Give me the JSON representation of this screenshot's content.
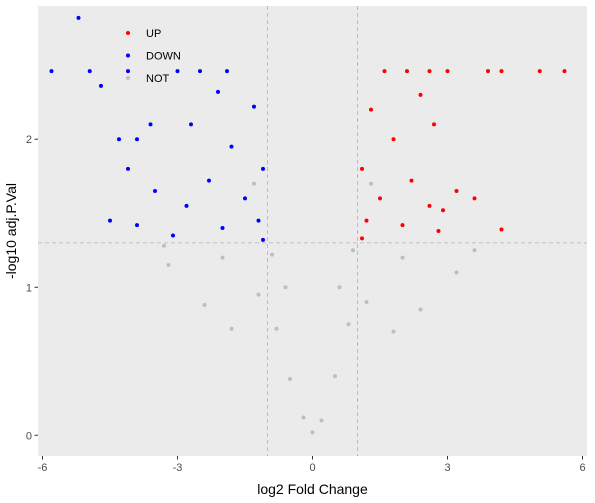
{
  "chart_data": {
    "type": "scatter",
    "title": "",
    "xlabel": "log2 Fold Change",
    "ylabel": "-log10 adj.P.Val",
    "xlim": [
      -6.1,
      6.1
    ],
    "ylim": [
      -0.14,
      2.9
    ],
    "x_ticks": [
      -6,
      -3,
      0,
      3,
      6
    ],
    "y_ticks": [
      0,
      1,
      2
    ],
    "thresholds": {
      "x": [
        -1,
        1
      ],
      "y": 1.3
    },
    "grid": false,
    "panel_background": "#ebebeb",
    "legend": {
      "placement": "top-left",
      "entries": [
        {
          "label": "UP",
          "color": "#ff0000"
        },
        {
          "label": "DOWN",
          "color": "#0000ff"
        },
        {
          "label": "NOT",
          "color": "#bebebe"
        }
      ]
    },
    "series": [
      {
        "name": "UP",
        "color": "#ff0000",
        "points": [
          [
            3.9,
            2.46
          ],
          [
            4.2,
            2.46
          ],
          [
            5.05,
            2.46
          ],
          [
            5.6,
            2.46
          ],
          [
            3.0,
            2.46
          ],
          [
            2.6,
            2.46
          ],
          [
            1.6,
            2.46
          ],
          [
            2.1,
            2.46
          ],
          [
            3.2,
            1.65
          ],
          [
            4.2,
            1.39
          ],
          [
            3.6,
            1.6
          ],
          [
            2.9,
            1.52
          ],
          [
            2.4,
            2.3
          ],
          [
            1.3,
            2.2
          ],
          [
            2.7,
            2.1
          ],
          [
            1.8,
            2.0
          ],
          [
            1.1,
            1.8
          ],
          [
            2.2,
            1.72
          ],
          [
            1.5,
            1.6
          ],
          [
            2.6,
            1.55
          ],
          [
            1.2,
            1.45
          ],
          [
            2.0,
            1.42
          ],
          [
            2.8,
            1.38
          ],
          [
            1.1,
            1.33
          ]
        ]
      },
      {
        "name": "DOWN",
        "color": "#0000ff",
        "points": [
          [
            -5.8,
            2.46
          ],
          [
            -5.2,
            2.82
          ],
          [
            -4.95,
            2.46
          ],
          [
            -4.7,
            2.36
          ],
          [
            -4.3,
            2.0
          ],
          [
            -3.9,
            2.0
          ],
          [
            -4.1,
            1.8
          ],
          [
            -3.6,
            2.1
          ],
          [
            -3.5,
            1.65
          ],
          [
            -4.5,
            1.45
          ],
          [
            -3.9,
            1.42
          ],
          [
            -4.1,
            2.46
          ],
          [
            -3.0,
            2.46
          ],
          [
            -2.5,
            2.46
          ],
          [
            -1.9,
            2.46
          ],
          [
            -2.1,
            2.32
          ],
          [
            -1.3,
            2.22
          ],
          [
            -2.7,
            2.1
          ],
          [
            -1.8,
            1.95
          ],
          [
            -1.1,
            1.8
          ],
          [
            -2.3,
            1.72
          ],
          [
            -1.5,
            1.6
          ],
          [
            -2.8,
            1.55
          ],
          [
            -1.2,
            1.45
          ],
          [
            -2.0,
            1.4
          ],
          [
            -3.1,
            1.35
          ],
          [
            -1.1,
            1.32
          ]
        ]
      },
      {
        "name": "NOT",
        "color": "#bebebe",
        "points": [
          [
            0,
            0.02
          ],
          [
            0.2,
            0.1
          ],
          [
            -0.2,
            0.12
          ],
          [
            0.5,
            0.4
          ],
          [
            -0.5,
            0.38
          ],
          [
            0.8,
            0.75
          ],
          [
            -0.8,
            0.72
          ],
          [
            1.2,
            0.9
          ],
          [
            -1.2,
            0.95
          ],
          [
            1.8,
            0.7
          ],
          [
            -1.8,
            0.72
          ],
          [
            2.4,
            0.85
          ],
          [
            -2.4,
            0.88
          ],
          [
            3.2,
            1.1
          ],
          [
            -3.2,
            1.15
          ],
          [
            3.6,
            1.25
          ],
          [
            -3.3,
            1.28
          ],
          [
            0.9,
            1.25
          ],
          [
            -0.9,
            1.22
          ],
          [
            1.3,
            1.7
          ],
          [
            -1.3,
            1.7
          ],
          [
            0.6,
            1.0
          ],
          [
            -0.6,
            1.0
          ],
          [
            2.0,
            1.2
          ],
          [
            -2.0,
            1.2
          ]
        ]
      }
    ]
  }
}
